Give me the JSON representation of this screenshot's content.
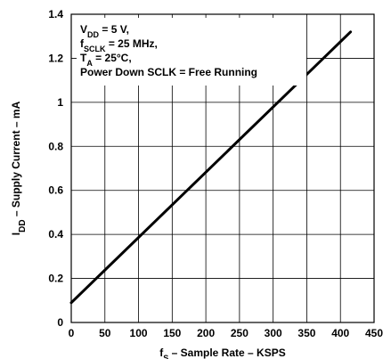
{
  "chart_data": {
    "type": "line",
    "x_ticks": [
      0,
      50,
      100,
      150,
      200,
      250,
      300,
      350,
      400,
      450
    ],
    "y_ticks": [
      "0",
      "0.2",
      "0.4",
      "0.6",
      "0.8",
      "1",
      "1.2",
      "1.4"
    ],
    "xlim": [
      0,
      450
    ],
    "ylim": [
      0,
      1.4
    ],
    "grid": true,
    "xlabel": {
      "pre": "f",
      "sub": "S",
      "post": " – Sample Rate – KSPS"
    },
    "ylabel": {
      "pre": "I",
      "sub": "DD",
      "post": " – Supply Current – mA"
    },
    "annotation": [
      {
        "pre": "V",
        "sub": "DD",
        "post": " = 5 V,"
      },
      {
        "pre": "f",
        "sub": "SCLK",
        "post": " = 25 MHz,"
      },
      {
        "pre": "T",
        "sub": "A",
        "post": " = 25°C,"
      },
      {
        "pre": "Power Down SCLK = Free Running",
        "sub": "",
        "post": ""
      }
    ],
    "series": [
      {
        "x": [
          0,
          415
        ],
        "y": [
          0.09,
          1.32
        ]
      }
    ]
  }
}
